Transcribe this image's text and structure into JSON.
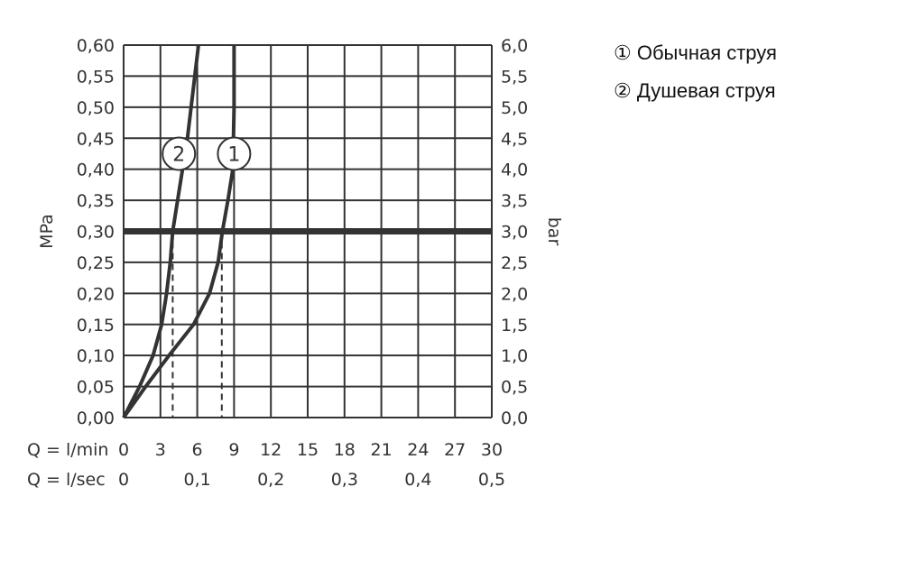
{
  "chart_data": {
    "type": "line",
    "title": "",
    "ylabel_left": "MPa",
    "ylabel_right": "bar",
    "xlabel_rows": [
      {
        "label": "Q = l/min",
        "ticks": [
          "0",
          "3",
          "6",
          "9",
          "12",
          "15",
          "18",
          "21",
          "24",
          "27",
          "30"
        ]
      },
      {
        "label": "Q = l/sec",
        "ticks": [
          "0",
          "",
          "0,1",
          "",
          "0,2",
          "",
          "0,3",
          "",
          "0,4",
          "",
          "0,5"
        ]
      }
    ],
    "xlim": [
      0,
      30
    ],
    "ylim": [
      0,
      0.6
    ],
    "y_ticks_left": [
      "0,00",
      "0,05",
      "0,10",
      "0,15",
      "0,20",
      "0,25",
      "0,30",
      "0,35",
      "0,40",
      "0,45",
      "0,50",
      "0,55",
      "0,60"
    ],
    "y_ticks_right": [
      "0,0",
      "0,5",
      "1,0",
      "1,5",
      "2,0",
      "2,5",
      "3,0",
      "3,5",
      "4,0",
      "4,5",
      "5,0",
      "5,5",
      "6,0"
    ],
    "grid": true,
    "reference_line_y": 0.3,
    "series": [
      {
        "name": "1",
        "x": [
          0,
          1.8,
          3.7,
          5.7,
          7.0,
          7.7,
          8.05,
          8.5,
          8.9,
          9.0,
          9.0
        ],
        "y": [
          0,
          0.05,
          0.1,
          0.15,
          0.2,
          0.25,
          0.3,
          0.35,
          0.4,
          0.5,
          0.6
        ],
        "marker_label": "1",
        "marker_at": [
          9.0,
          0.425
        ],
        "drop_x": 8
      },
      {
        "name": "2",
        "x": [
          0,
          1.3,
          2.4,
          3.1,
          3.5,
          3.8,
          4.0,
          4.4,
          4.8,
          5.2,
          5.5,
          5.8,
          6.1
        ],
        "y": [
          0,
          0.05,
          0.1,
          0.15,
          0.2,
          0.25,
          0.3,
          0.35,
          0.4,
          0.45,
          0.5,
          0.55,
          0.6
        ],
        "marker_label": "2",
        "marker_at": [
          4.5,
          0.425
        ],
        "drop_x": 4
      }
    ],
    "legend": [
      "① Обычная струя",
      "② Душевая струя"
    ],
    "legend_position": "top-right",
    "colors": {
      "line": "#333333",
      "grid": "#333333"
    }
  }
}
